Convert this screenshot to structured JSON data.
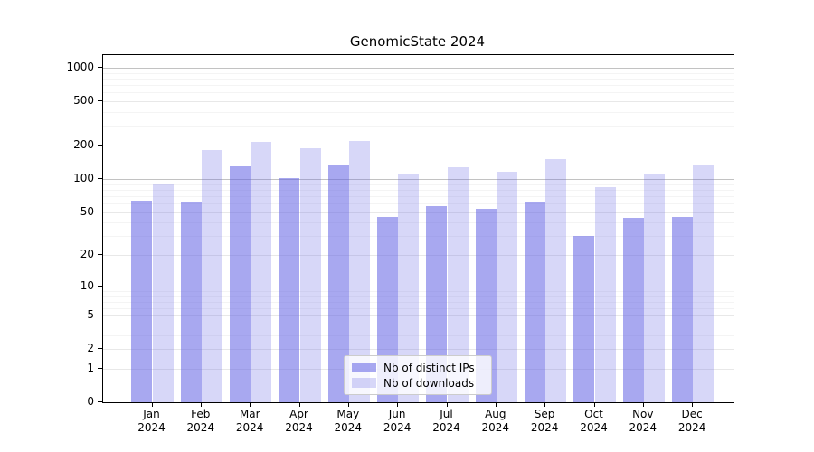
{
  "figure": {
    "title": "GenomicState 2024",
    "background_color": "#ffffff"
  },
  "chart_data": {
    "type": "bar",
    "title": "GenomicState 2024",
    "categories": [
      "Jan 2024",
      "Feb 2024",
      "Mar 2024",
      "Apr 2024",
      "May 2024",
      "Jun 2024",
      "Jul 2024",
      "Aug 2024",
      "Sep 2024",
      "Oct 2024",
      "Nov 2024",
      "Dec 2024"
    ],
    "series": [
      {
        "name": "Nb of distinct IPs",
        "values": [
          64,
          61,
          129,
          102,
          136,
          45,
          57,
          53,
          62,
          30,
          44,
          45
        ],
        "color": "rgba(97,97,228,0.55)",
        "approx_hex": "#a8a8ef"
      },
      {
        "name": "Nb of downloads",
        "values": [
          91,
          184,
          215,
          189,
          220,
          112,
          127,
          117,
          151,
          84,
          112,
          134
        ],
        "color": "rgba(97,97,228,0.25)",
        "approx_hex": "#d9d9f6"
      }
    ],
    "y_ticks": [
      0,
      1,
      2,
      5,
      10,
      20,
      50,
      100,
      200,
      500,
      1000
    ],
    "y_scale": "log10(value + 1)",
    "ylim": [
      0,
      1000
    ],
    "xlabel": "",
    "ylabel": "",
    "grid": true,
    "grid_major_power_color": "#c2c2c2",
    "grid_major_color": "#e8e8e8",
    "grid_minor_color": "#f4f4f4",
    "legend_position": "lower center"
  }
}
